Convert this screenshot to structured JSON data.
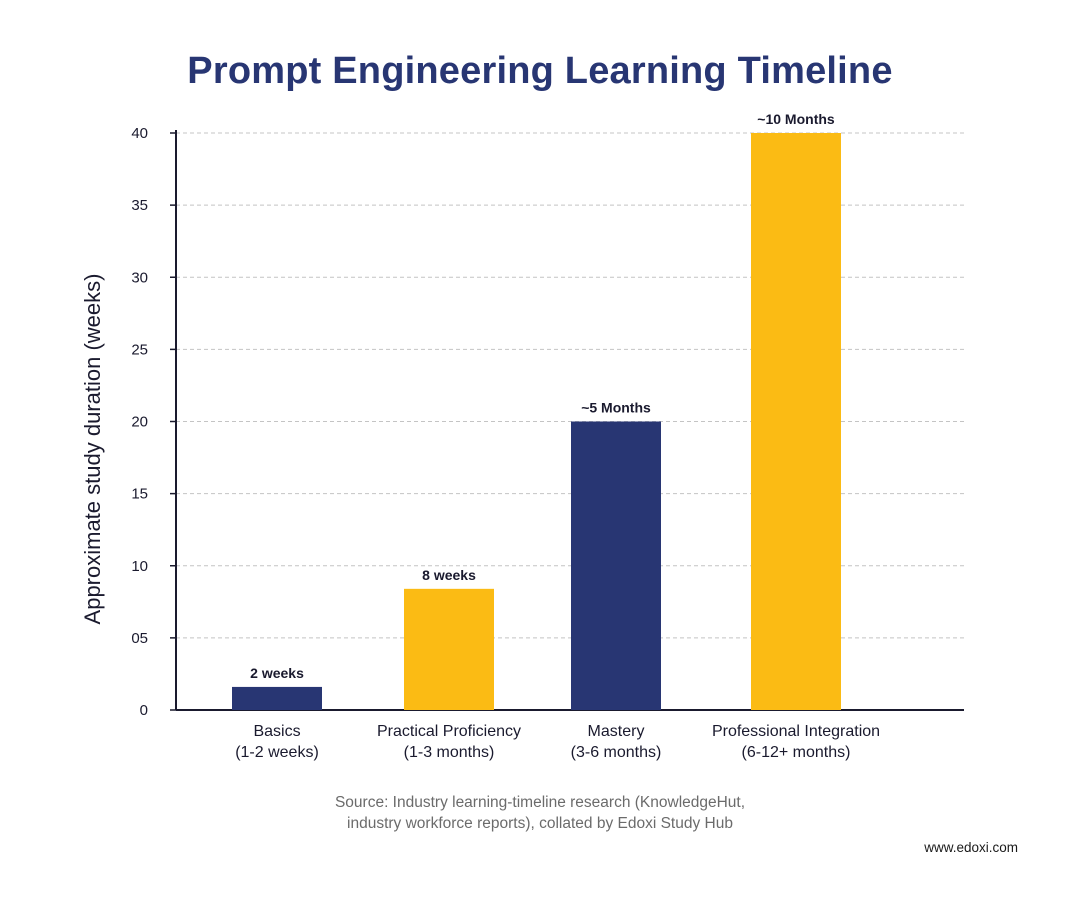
{
  "chart_data": {
    "type": "bar",
    "title": "Prompt Engineering Learning Timeline",
    "ylabel": "Approximate study duration (weeks)",
    "xlabel": "",
    "ylim": [
      0,
      40
    ],
    "yticks": [
      0,
      5,
      10,
      15,
      20,
      25,
      30,
      35,
      40
    ],
    "ytick_labels": [
      "0",
      "05",
      "10",
      "15",
      "20",
      "25",
      "30",
      "35",
      "40"
    ],
    "grid": "horizontal dashed",
    "categories": [
      [
        "Basics",
        "(1-2 weeks)"
      ],
      [
        "Practical Proficiency",
        "(1-3 months)"
      ],
      [
        "Mastery",
        "(3-6 months)"
      ],
      [
        "Professional Integration",
        "(6-12+ months)"
      ]
    ],
    "values": [
      1.6,
      8.4,
      20,
      40
    ],
    "data_labels": [
      "2 weeks",
      "8 weeks",
      "~5 Months",
      "~10 Months"
    ],
    "bar_colors": [
      "#283673",
      "#fbbb14",
      "#283673",
      "#fbbb14"
    ]
  },
  "source_note": [
    "Source: Industry learning-timeline research (KnowledgeHut,",
    "industry workforce reports), collated by Edoxi Study Hub"
  ],
  "site_url": "www.edoxi.com",
  "colors": {
    "title": "#283673",
    "axis": "#1a1a2e",
    "grid": "#c4c4c4",
    "navy": "#283673",
    "yellow": "#fbbb14"
  }
}
